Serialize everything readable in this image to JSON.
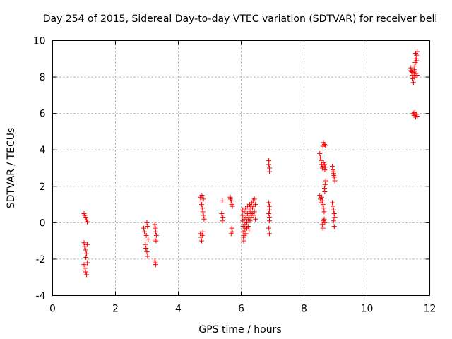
{
  "chart_data": {
    "type": "scatter",
    "title": "Day 254 of 2015, Sidereal Day-to-day VTEC variation (SDTVAR) for receiver bell",
    "xlabel": "GPS time / hours",
    "ylabel": "SDTVAR / TECUs",
    "xlim": [
      0,
      12
    ],
    "ylim": [
      -4,
      10
    ],
    "xticks": [
      "0",
      "2",
      "4",
      "6",
      "8",
      "10",
      "12"
    ],
    "yticks": [
      "-4",
      "-2",
      "0",
      "2",
      "4",
      "6",
      "8",
      "10"
    ],
    "grid": true,
    "marker": "+",
    "color": "#ff0000",
    "series": [
      {
        "name": "SDTVAR",
        "points": [
          [
            1.0,
            0.5
          ],
          [
            1.02,
            0.4
          ],
          [
            1.05,
            0.3
          ],
          [
            1.08,
            0.15
          ],
          [
            1.1,
            0.05
          ],
          [
            1.0,
            -1.1
          ],
          [
            1.02,
            -1.3
          ],
          [
            1.05,
            -1.5
          ],
          [
            1.08,
            -1.7
          ],
          [
            1.1,
            -1.2
          ],
          [
            1.0,
            -2.3
          ],
          [
            1.03,
            -2.5
          ],
          [
            1.05,
            -2.7
          ],
          [
            1.08,
            -2.85
          ],
          [
            1.1,
            -2.2
          ],
          [
            1.06,
            -1.9
          ],
          [
            2.9,
            -0.3
          ],
          [
            2.92,
            -0.5
          ],
          [
            2.95,
            -1.2
          ],
          [
            2.97,
            -1.4
          ],
          [
            3.0,
            -1.6
          ],
          [
            3.02,
            -1.85
          ],
          [
            3.0,
            0.0
          ],
          [
            3.02,
            -0.2
          ],
          [
            2.98,
            -0.7
          ],
          [
            3.04,
            -0.9
          ],
          [
            3.25,
            -0.1
          ],
          [
            3.27,
            -0.3
          ],
          [
            3.28,
            -0.5
          ],
          [
            3.3,
            -0.7
          ],
          [
            3.26,
            -0.9
          ],
          [
            3.29,
            -1.0
          ],
          [
            3.25,
            -2.1
          ],
          [
            3.27,
            -2.2
          ],
          [
            3.28,
            -2.3
          ],
          [
            4.7,
            1.4
          ],
          [
            4.72,
            1.2
          ],
          [
            4.74,
            1.0
          ],
          [
            4.76,
            0.8
          ],
          [
            4.78,
            0.6
          ],
          [
            4.8,
            0.4
          ],
          [
            4.82,
            0.2
          ],
          [
            4.7,
            -0.6
          ],
          [
            4.72,
            -0.8
          ],
          [
            4.74,
            -1.0
          ],
          [
            4.76,
            -0.7
          ],
          [
            4.78,
            -0.5
          ],
          [
            4.75,
            1.5
          ],
          [
            4.8,
            1.3
          ],
          [
            5.4,
            1.2
          ],
          [
            5.38,
            0.5
          ],
          [
            5.42,
            0.3
          ],
          [
            5.4,
            0.1
          ],
          [
            5.65,
            1.4
          ],
          [
            5.68,
            1.2
          ],
          [
            5.7,
            1.0
          ],
          [
            5.72,
            0.9
          ],
          [
            5.66,
            1.3
          ],
          [
            5.7,
            -0.3
          ],
          [
            5.72,
            -0.5
          ],
          [
            5.68,
            -0.6
          ],
          [
            6.05,
            0.7
          ],
          [
            6.05,
            0.4
          ],
          [
            6.05,
            0.1
          ],
          [
            6.06,
            -0.2
          ],
          [
            6.06,
            -0.5
          ],
          [
            6.07,
            -0.8
          ],
          [
            6.08,
            -1.0
          ],
          [
            6.1,
            0.6
          ],
          [
            6.1,
            0.2
          ],
          [
            6.12,
            -0.1
          ],
          [
            6.12,
            -0.4
          ],
          [
            6.14,
            0.8
          ],
          [
            6.15,
            0.3
          ],
          [
            6.18,
            0.0
          ],
          [
            6.18,
            -0.3
          ],
          [
            6.2,
            0.5
          ],
          [
            6.2,
            0.9
          ],
          [
            6.22,
            0.2
          ],
          [
            6.22,
            -0.2
          ],
          [
            6.25,
            0.4
          ],
          [
            6.25,
            0.7
          ],
          [
            6.27,
            1.0
          ],
          [
            6.28,
            0.1
          ],
          [
            6.3,
            0.6
          ],
          [
            6.3,
            0.9
          ],
          [
            6.32,
            0.3
          ],
          [
            6.34,
            1.1
          ],
          [
            6.35,
            0.5
          ],
          [
            6.36,
            0.8
          ],
          [
            6.38,
            1.2
          ],
          [
            6.4,
            0.9
          ],
          [
            6.4,
            0.4
          ],
          [
            6.42,
            1.3
          ],
          [
            6.42,
            0.6
          ],
          [
            6.45,
            1.0
          ],
          [
            6.45,
            0.2
          ],
          [
            6.15,
            -0.6
          ],
          [
            6.1,
            -0.7
          ],
          [
            6.25,
            -0.4
          ],
          [
            6.88,
            3.4
          ],
          [
            6.88,
            3.2
          ],
          [
            6.9,
            3.0
          ],
          [
            6.9,
            2.8
          ],
          [
            6.88,
            1.1
          ],
          [
            6.9,
            0.9
          ],
          [
            6.9,
            0.7
          ],
          [
            6.88,
            0.5
          ],
          [
            6.9,
            0.3
          ],
          [
            6.9,
            0.1
          ],
          [
            6.88,
            -0.3
          ],
          [
            6.9,
            -0.6
          ],
          [
            8.5,
            3.8
          ],
          [
            8.52,
            3.6
          ],
          [
            8.54,
            3.4
          ],
          [
            8.56,
            3.2
          ],
          [
            8.58,
            3.0
          ],
          [
            8.6,
            4.2
          ],
          [
            8.62,
            4.4
          ],
          [
            8.65,
            4.3
          ],
          [
            8.68,
            4.25
          ],
          [
            8.6,
            3.1
          ],
          [
            8.62,
            3.3
          ],
          [
            8.65,
            3.2
          ],
          [
            8.68,
            3.05
          ],
          [
            8.66,
            2.9
          ],
          [
            8.5,
            1.5
          ],
          [
            8.52,
            1.3
          ],
          [
            8.54,
            1.1
          ],
          [
            8.56,
            1.4
          ],
          [
            8.58,
            1.2
          ],
          [
            8.6,
            1.0
          ],
          [
            8.62,
            0.8
          ],
          [
            8.64,
            0.6
          ],
          [
            8.58,
            -0.1
          ],
          [
            8.6,
            -0.3
          ],
          [
            8.62,
            0.1
          ],
          [
            8.64,
            0.2
          ],
          [
            8.66,
            0.0
          ],
          [
            8.65,
            1.9
          ],
          [
            8.67,
            2.1
          ],
          [
            8.69,
            2.3
          ],
          [
            8.66,
            1.7
          ],
          [
            8.9,
            3.1
          ],
          [
            8.92,
            2.9
          ],
          [
            8.94,
            2.7
          ],
          [
            8.96,
            2.5
          ],
          [
            8.98,
            2.3
          ],
          [
            8.93,
            2.8
          ],
          [
            8.95,
            2.6
          ],
          [
            8.9,
            1.1
          ],
          [
            8.92,
            0.9
          ],
          [
            8.94,
            0.7
          ],
          [
            8.96,
            0.5
          ],
          [
            8.98,
            0.3
          ],
          [
            8.94,
            0.1
          ],
          [
            8.96,
            -0.2
          ],
          [
            11.4,
            8.5
          ],
          [
            11.42,
            8.3
          ],
          [
            11.44,
            8.1
          ],
          [
            11.46,
            7.9
          ],
          [
            11.48,
            7.7
          ],
          [
            11.5,
            8.4
          ],
          [
            11.52,
            8.6
          ],
          [
            11.54,
            8.8
          ],
          [
            11.56,
            9.0
          ],
          [
            11.58,
            9.2
          ],
          [
            11.6,
            9.4
          ],
          [
            11.55,
            9.3
          ],
          [
            11.58,
            8.9
          ],
          [
            11.5,
            8.2
          ],
          [
            11.52,
            8.0
          ],
          [
            11.56,
            8.2
          ],
          [
            11.6,
            8.1
          ],
          [
            11.45,
            8.25
          ],
          [
            11.4,
            8.35
          ],
          [
            11.48,
            6.0
          ],
          [
            11.5,
            5.9
          ],
          [
            11.55,
            5.8
          ],
          [
            11.58,
            5.95
          ],
          [
            11.6,
            5.85
          ],
          [
            11.52,
            6.05
          ]
        ]
      }
    ]
  }
}
